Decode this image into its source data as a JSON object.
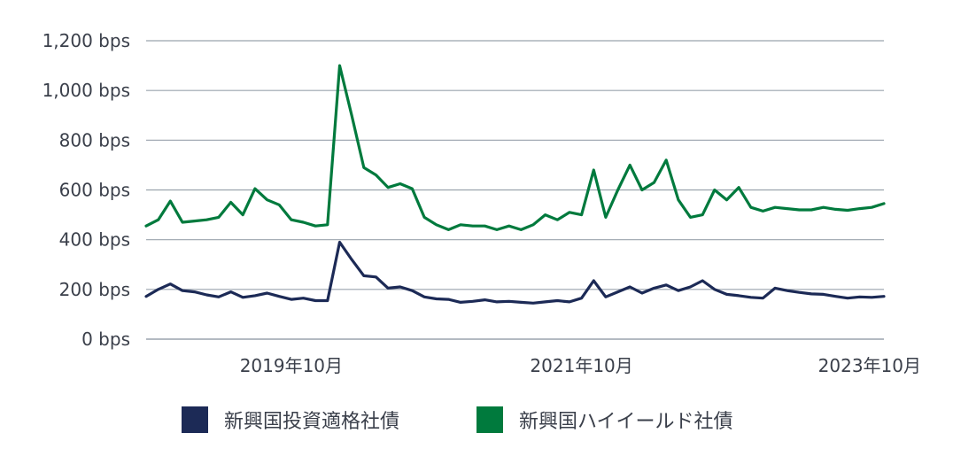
{
  "chart_data": {
    "type": "line",
    "title": "",
    "xlabel": "",
    "ylabel": "",
    "ylim": [
      0,
      1200
    ],
    "y_ticks": [
      {
        "value": 0,
        "label": "0 bps"
      },
      {
        "value": 200,
        "label": "200 bps"
      },
      {
        "value": 400,
        "label": "400 bps"
      },
      {
        "value": 600,
        "label": "600 bps"
      },
      {
        "value": 800,
        "label": "800 bps"
      },
      {
        "value": 1000,
        "label": "1,000 bps"
      },
      {
        "value": 1200,
        "label": "1,200 bps"
      }
    ],
    "x_ticks": [
      {
        "value": "2019-10",
        "label": "2019年10月"
      },
      {
        "value": "2021-10",
        "label": "2021年10月"
      },
      {
        "value": "2023-10",
        "label": "2023年10月"
      }
    ],
    "x": [
      "2018-10",
      "2018-11",
      "2018-12",
      "2019-01",
      "2019-02",
      "2019-03",
      "2019-04",
      "2019-05",
      "2019-06",
      "2019-07",
      "2019-08",
      "2019-09",
      "2019-10",
      "2019-11",
      "2019-12",
      "2020-01",
      "2020-02",
      "2020-03",
      "2020-04",
      "2020-05",
      "2020-06",
      "2020-07",
      "2020-08",
      "2020-09",
      "2020-10",
      "2020-11",
      "2020-12",
      "2021-01",
      "2021-02",
      "2021-03",
      "2021-04",
      "2021-05",
      "2021-06",
      "2021-07",
      "2021-08",
      "2021-09",
      "2021-10",
      "2021-11",
      "2021-12",
      "2022-01",
      "2022-02",
      "2022-03",
      "2022-04",
      "2022-05",
      "2022-06",
      "2022-07",
      "2022-08",
      "2022-09",
      "2022-10",
      "2022-11",
      "2022-12",
      "2023-01",
      "2023-02",
      "2023-03",
      "2023-04",
      "2023-05",
      "2023-06",
      "2023-07",
      "2023-08",
      "2023-09",
      "2023-10",
      "2023-11"
    ],
    "series": [
      {
        "name": "新興国投資適格社債",
        "color": "#1c2a56",
        "values": [
          172,
          200,
          222,
          195,
          190,
          178,
          170,
          190,
          168,
          175,
          185,
          172,
          160,
          165,
          155,
          155,
          390,
          320,
          255,
          250,
          205,
          210,
          195,
          170,
          162,
          160,
          148,
          152,
          158,
          150,
          152,
          148,
          145,
          150,
          155,
          150,
          165,
          235,
          170,
          190,
          210,
          185,
          205,
          218,
          195,
          210,
          235,
          200,
          180,
          175,
          168,
          165,
          205,
          195,
          188,
          182,
          180,
          172,
          165,
          170,
          168,
          172
        ]
      },
      {
        "name": "新興国ハイイールド社債",
        "color": "#007a3d",
        "values": [
          455,
          480,
          555,
          470,
          475,
          480,
          490,
          550,
          500,
          605,
          560,
          540,
          480,
          470,
          455,
          460,
          1100,
          900,
          690,
          660,
          610,
          625,
          605,
          490,
          460,
          440,
          460,
          455,
          455,
          440,
          455,
          440,
          460,
          500,
          480,
          510,
          500,
          680,
          490,
          600,
          700,
          600,
          630,
          720,
          560,
          490,
          500,
          600,
          560,
          610,
          530,
          515,
          530,
          525,
          520,
          520,
          530,
          522,
          518,
          525,
          530,
          545
        ]
      }
    ],
    "legend": "bottom"
  }
}
